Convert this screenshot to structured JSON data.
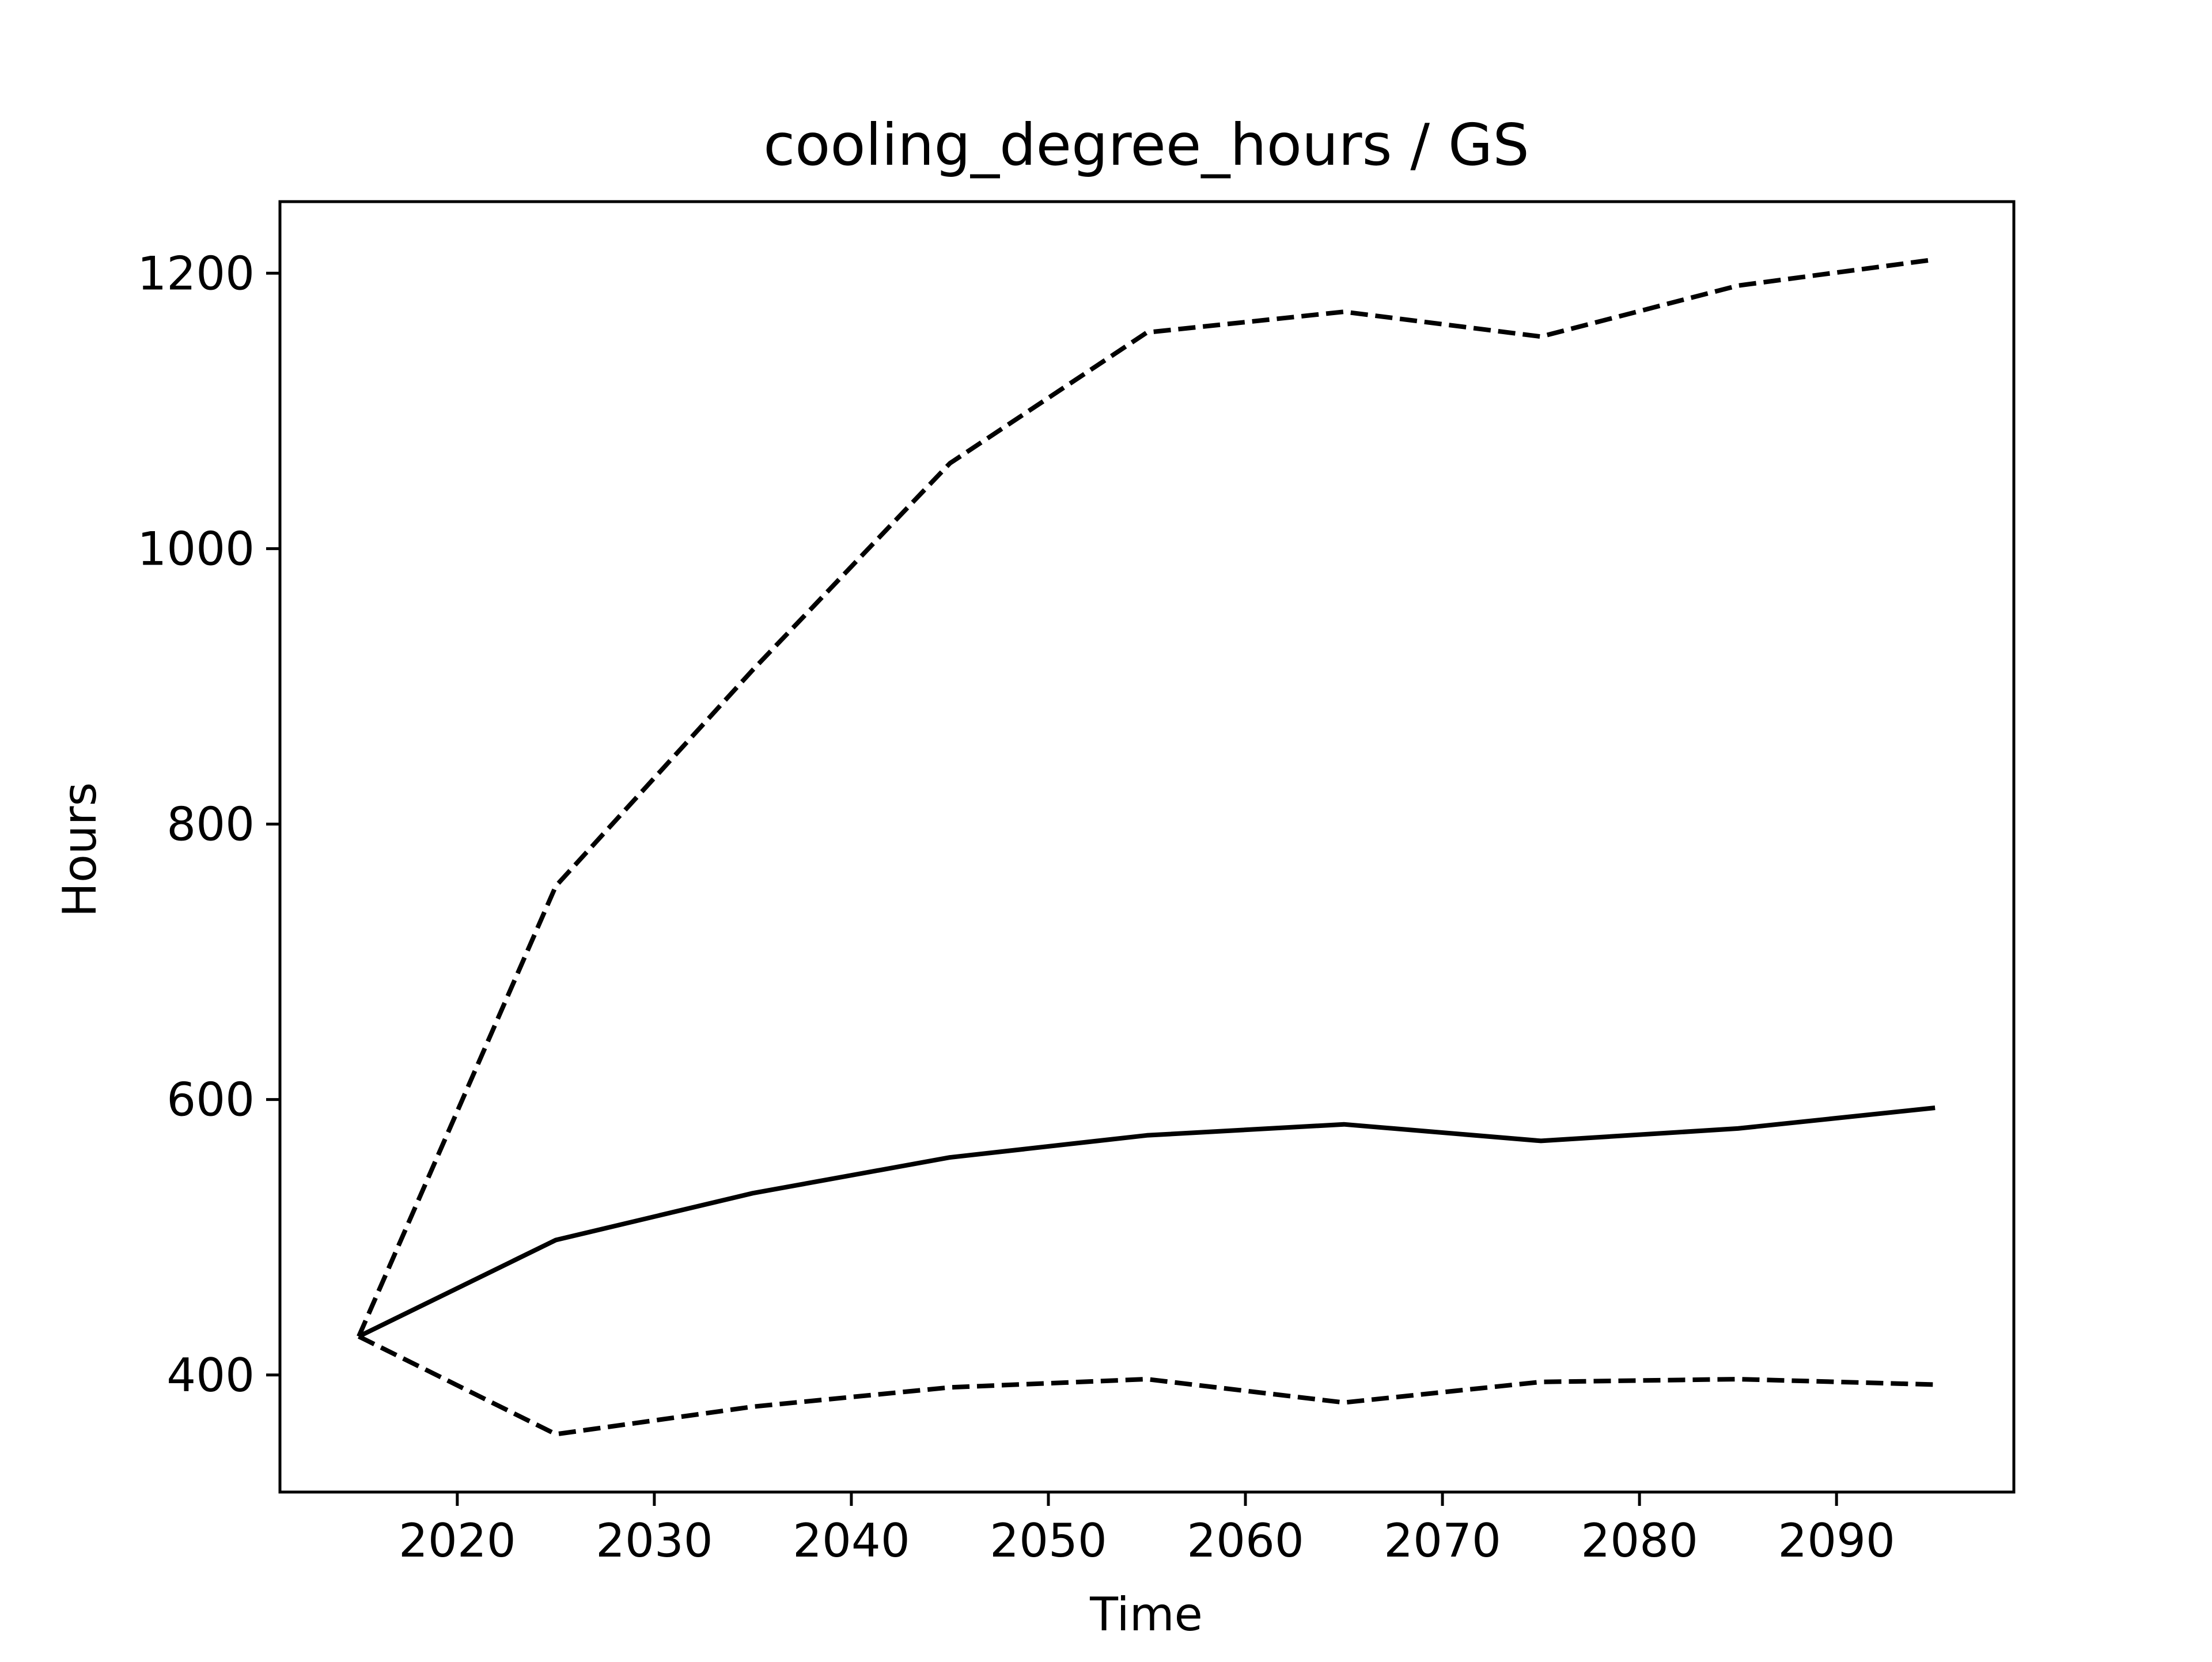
{
  "chart_data": {
    "type": "line",
    "title": "cooling_degree_hours / GS",
    "xlabel": "Time",
    "ylabel": "Hours",
    "xlim": [
      2011,
      2099
    ],
    "ylim": [
      315,
      1252
    ],
    "xticks": [
      2020,
      2030,
      2040,
      2050,
      2060,
      2070,
      2080,
      2090
    ],
    "yticks": [
      400,
      600,
      800,
      1000,
      1200
    ],
    "grid": false,
    "legend": "none",
    "x": [
      2015,
      2025,
      2035,
      2045,
      2055,
      2065,
      2075,
      2085,
      2095
    ],
    "series": [
      {
        "style": "solid",
        "color": "#000000",
        "values": [
          428,
          498,
          532,
          558,
          574,
          582,
          570,
          579,
          594
        ]
      },
      {
        "style": "dashed",
        "color": "#000000",
        "values": [
          428,
          755,
          912,
          1062,
          1157,
          1172,
          1154,
          1191,
          1210
        ]
      },
      {
        "style": "dashed",
        "color": "#000000",
        "values": [
          428,
          357,
          377,
          391,
          397,
          380,
          395,
          397,
          393
        ]
      }
    ]
  }
}
